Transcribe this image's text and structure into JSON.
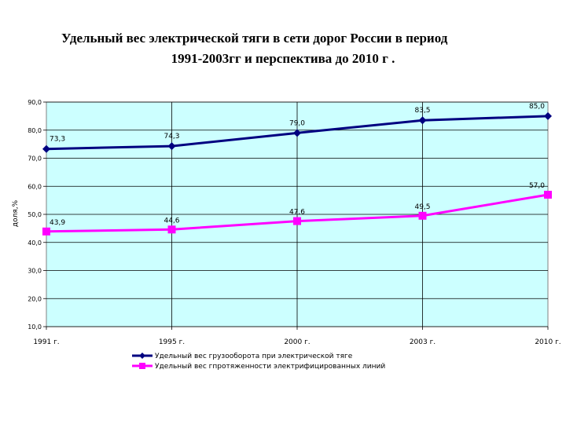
{
  "title": {
    "line1": "Удельный вес электрической тяги в сети дорог России в период",
    "line2": "1991-2003гг и перспектива до 2010 г ."
  },
  "chart_data": {
    "type": "line",
    "title": "Удельный вес электрической тяги в сети дорог России в период 1991-2003гг и перспектива до 2010 г .",
    "ylabel": "доля,%",
    "xlabel": "",
    "categories": [
      "1991 г.",
      "1995 г.",
      "2000 г.",
      "2003 г.",
      "2010 г."
    ],
    "ylim": [
      10,
      90
    ],
    "yticks": [
      "10,0",
      "20,0",
      "30,0",
      "40,0",
      "50,0",
      "60,0",
      "70,0",
      "80,0",
      "90,0"
    ],
    "grid": true,
    "legend_position": "bottom",
    "plot_background": "#ccffff",
    "series": [
      {
        "name": "Удельный вес грузооборота при электрической тяге",
        "values": [
          73.3,
          74.3,
          79.0,
          83.5,
          85.0
        ],
        "labels": [
          "73,3",
          "74,3",
          "79,0",
          "83,5",
          "85,0"
        ],
        "color": "#000080",
        "marker": "diamond"
      },
      {
        "name": "Удельный вес гпротяженности электрифицированных линий",
        "values": [
          43.9,
          44.6,
          47.6,
          49.5,
          57.0
        ],
        "labels": [
          "43,9",
          "44,6",
          "47,6",
          "49,5",
          "57,0"
        ],
        "color": "#ff00ff",
        "marker": "square"
      }
    ]
  }
}
